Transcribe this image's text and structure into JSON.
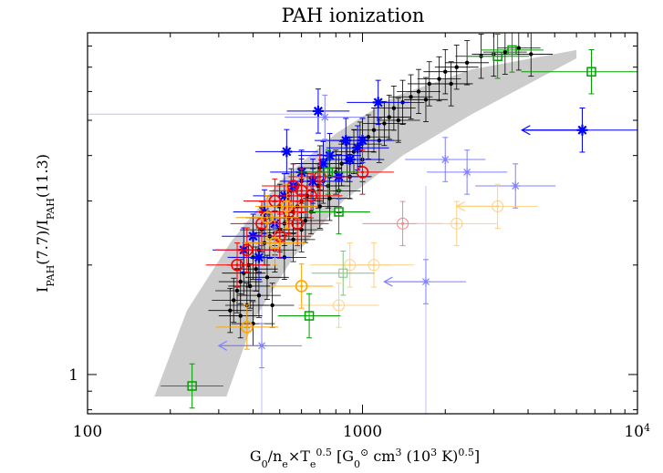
{
  "chart_data": {
    "type": "scatter",
    "title": "PAH ionization",
    "xlabel": "G0/ne×Te0.5 [G0⊙ cm3 (103 K)0.5]",
    "ylabel": "IPAH(7.7)/IPAH(11.3)",
    "x_scale": "log",
    "y_scale": "log",
    "xlim": [
      100,
      10000
    ],
    "ylim": [
      0.78,
      8.7
    ],
    "x_tick_labels": [
      {
        "value": 100,
        "label": "100"
      },
      {
        "value": 1000,
        "label": "1000"
      },
      {
        "value": 10000,
        "label": "10",
        "exponent": "4"
      }
    ],
    "y_tick_labels": [
      {
        "value": 1,
        "label": "1"
      }
    ],
    "grid": false,
    "band": {
      "color": "#cccccc",
      "upper": [
        [
          175,
          0.87
        ],
        [
          230,
          1.5
        ],
        [
          330,
          2.3
        ],
        [
          500,
          3.4
        ],
        [
          800,
          4.6
        ],
        [
          1300,
          5.8
        ],
        [
          2500,
          6.9
        ],
        [
          6000,
          7.8
        ]
      ],
      "lower": [
        [
          320,
          0.87
        ],
        [
          400,
          1.4
        ],
        [
          560,
          2.1
        ],
        [
          850,
          3.0
        ],
        [
          1400,
          4.0
        ],
        [
          2500,
          5.2
        ],
        [
          6000,
          7.4
        ]
      ]
    },
    "series": [
      {
        "marker": "dot",
        "color": "#000000",
        "points": [
          [
            2700,
            7.5,
            0.12,
            0.3
          ],
          [
            3000,
            7.6,
            0.1,
            0.3
          ],
          [
            3300,
            7.7,
            0.1,
            0.3
          ],
          [
            3700,
            7.9,
            0.1,
            0.3
          ],
          [
            4100,
            7.6,
            0.1,
            0.3
          ],
          [
            2400,
            7.2,
            0.1,
            0.3
          ],
          [
            2200,
            7.0,
            0.1,
            0.3
          ],
          [
            2000,
            6.8,
            0.1,
            0.3
          ],
          [
            1900,
            6.5,
            0.1,
            0.3
          ],
          [
            1750,
            6.3,
            0.1,
            0.3
          ],
          [
            1600,
            6.0,
            0.1,
            0.3
          ],
          [
            1500,
            5.8,
            0.1,
            0.3
          ],
          [
            1400,
            5.6,
            0.1,
            0.3
          ],
          [
            1300,
            5.4,
            0.1,
            0.3
          ],
          [
            1250,
            5.1,
            0.1,
            0.3
          ],
          [
            1200,
            4.9,
            0.1,
            0.3
          ],
          [
            1100,
            4.7,
            0.1,
            0.3
          ],
          [
            1050,
            4.5,
            0.1,
            0.3
          ],
          [
            980,
            4.3,
            0.1,
            0.3
          ],
          [
            930,
            4.1,
            0.1,
            0.3
          ],
          [
            880,
            3.9,
            0.1,
            0.3
          ],
          [
            840,
            3.8,
            0.1,
            0.3
          ],
          [
            800,
            3.6,
            0.1,
            0.3
          ],
          [
            760,
            3.5,
            0.1,
            0.3
          ],
          [
            720,
            3.4,
            0.1,
            0.3
          ],
          [
            690,
            3.3,
            0.1,
            0.3
          ],
          [
            660,
            3.2,
            0.1,
            0.3
          ],
          [
            630,
            3.1,
            0.1,
            0.3
          ],
          [
            600,
            3.0,
            0.1,
            0.3
          ],
          [
            580,
            2.9,
            0.1,
            0.3
          ],
          [
            560,
            2.8,
            0.1,
            0.3
          ],
          [
            540,
            2.7,
            0.1,
            0.3
          ],
          [
            520,
            2.6,
            0.1,
            0.3
          ],
          [
            500,
            2.5,
            0.1,
            0.3
          ],
          [
            480,
            2.45,
            0.1,
            0.3
          ],
          [
            460,
            2.4,
            0.1,
            0.3
          ],
          [
            440,
            2.3,
            0.1,
            0.3
          ],
          [
            420,
            2.2,
            0.1,
            0.3
          ],
          [
            400,
            2.1,
            0.1,
            0.3
          ],
          [
            385,
            2.0,
            0.1,
            0.3
          ],
          [
            370,
            1.9,
            0.1,
            0.3
          ],
          [
            360,
            1.8,
            0.1,
            0.3
          ],
          [
            350,
            1.7,
            0.1,
            0.3
          ],
          [
            340,
            1.6,
            0.1,
            0.3
          ],
          [
            330,
            1.5,
            0.1,
            0.3
          ],
          [
            700,
            3.7,
            0.1,
            0.3
          ],
          [
            750,
            3.3,
            0.1,
            0.3
          ],
          [
            820,
            3.2,
            0.1,
            0.3
          ],
          [
            600,
            3.4,
            0.1,
            0.3
          ],
          [
            550,
            3.2,
            0.1,
            0.3
          ],
          [
            650,
            2.8,
            0.1,
            0.3
          ],
          [
            500,
            2.9,
            0.1,
            0.3
          ],
          [
            450,
            2.7,
            0.1,
            0.3
          ],
          [
            430,
            2.5,
            0.1,
            0.3
          ],
          [
            480,
            2.2,
            0.1,
            0.3
          ],
          [
            520,
            2.1,
            0.1,
            0.3
          ],
          [
            410,
            1.95,
            0.1,
            0.3
          ],
          [
            390,
            1.75,
            0.1,
            0.3
          ],
          [
            450,
            1.85,
            0.1,
            0.3
          ],
          [
            600,
            2.5,
            0.1,
            0.3
          ],
          [
            700,
            2.9,
            0.1,
            0.3
          ],
          [
            900,
            3.5,
            0.1,
            0.3
          ],
          [
            1000,
            3.9,
            0.1,
            0.3
          ],
          [
            1150,
            4.4,
            0.1,
            0.3
          ],
          [
            1350,
            5.0,
            0.1,
            0.3
          ],
          [
            1700,
            5.7,
            0.1,
            0.3
          ],
          [
            2100,
            6.3,
            0.1,
            0.3
          ],
          [
            380,
            1.55,
            0.1,
            0.3
          ],
          [
            420,
            1.65,
            0.1,
            0.3
          ],
          [
            470,
            1.55,
            0.1,
            0.3
          ],
          [
            360,
            1.45,
            0.1,
            0.3
          ],
          [
            400,
            1.38,
            0.1,
            0.3
          ],
          [
            560,
            2.35,
            0.1,
            0.3
          ],
          [
            620,
            2.65,
            0.1,
            0.3
          ],
          [
            760,
            3.05,
            0.1,
            0.3
          ]
        ]
      },
      {
        "marker": "star",
        "color": "#0000ff",
        "points": [
          [
            690,
            5.3,
            0.15,
            0.3
          ],
          [
            1140,
            5.6,
            0.15,
            0.3
          ],
          [
            530,
            4.1,
            0.15,
            0.3
          ],
          [
            6300,
            4.7,
            0.3,
            0.3
          ],
          [
            870,
            4.4,
            0.15,
            0.3
          ],
          [
            960,
            4.2,
            0.15,
            0.3
          ],
          [
            1000,
            4.4,
            0.15,
            0.3
          ],
          [
            760,
            4.0,
            0.15,
            0.3
          ],
          [
            660,
            3.4,
            0.15,
            0.3
          ],
          [
            560,
            3.3,
            0.15,
            0.3
          ],
          [
            520,
            3.1,
            0.15,
            0.3
          ],
          [
            440,
            2.8,
            0.15,
            0.3
          ],
          [
            480,
            2.6,
            0.15,
            0.3
          ],
          [
            400,
            2.4,
            0.15,
            0.3
          ],
          [
            370,
            2.2,
            0.15,
            0.3
          ],
          [
            420,
            2.1,
            0.15,
            0.3
          ],
          [
            600,
            3.6,
            0.15,
            0.3
          ],
          [
            720,
            3.8,
            0.15,
            0.3
          ],
          [
            820,
            3.5,
            0.15,
            0.3
          ],
          [
            900,
            3.9,
            0.15,
            0.3
          ]
        ]
      },
      {
        "marker": "star-open",
        "color": "#8080ff",
        "points": [
          [
            730,
            5.1,
            0.2,
            0.3
          ],
          [
            2000,
            3.9,
            0.2,
            0.3
          ],
          [
            2400,
            3.6,
            0.2,
            0.3
          ],
          [
            3600,
            3.3,
            0.2,
            0.3
          ],
          [
            1700,
            1.8,
            0.2,
            0.3
          ],
          [
            430,
            1.2,
            0.2,
            0.3
          ]
        ]
      },
      {
        "marker": "circle",
        "color": "#ff0000",
        "points": [
          [
            480,
            3.0,
            0.15,
            0.3
          ],
          [
            540,
            2.8,
            0.15,
            0.3
          ],
          [
            600,
            3.2,
            0.15,
            0.3
          ],
          [
            650,
            3.1,
            0.15,
            0.3
          ],
          [
            430,
            2.6,
            0.15,
            0.3
          ],
          [
            380,
            2.2,
            0.15,
            0.3
          ],
          [
            350,
            2.0,
            0.15,
            0.3
          ],
          [
            1000,
            3.6,
            0.15,
            0.3
          ],
          [
            700,
            3.5,
            0.15,
            0.3
          ],
          [
            580,
            2.6,
            0.15,
            0.3
          ],
          [
            500,
            2.4,
            0.15,
            0.3
          ],
          [
            560,
            3.3,
            0.15,
            0.3
          ]
        ]
      },
      {
        "marker": "circle-open",
        "color": "#ff8080",
        "points": [
          [
            1400,
            2.6,
            0.2,
            0.3
          ]
        ]
      },
      {
        "marker": "circle",
        "color": "#ffa500",
        "points": [
          [
            530,
            2.9,
            0.15,
            0.3
          ],
          [
            450,
            2.7,
            0.15,
            0.3
          ],
          [
            600,
            1.75,
            0.15,
            0.3
          ],
          [
            380,
            1.35,
            0.15,
            0.3
          ],
          [
            480,
            2.3,
            0.15,
            0.3
          ]
        ]
      },
      {
        "marker": "circle-open",
        "color": "#ffd080",
        "points": [
          [
            3100,
            2.9,
            0.2,
            0.3
          ],
          [
            2200,
            2.6,
            0.2,
            0.3
          ],
          [
            900,
            2.0,
            0.2,
            0.3
          ],
          [
            820,
            1.55,
            0.2,
            0.3
          ],
          [
            1100,
            2.0,
            0.2,
            0.3
          ]
        ]
      },
      {
        "marker": "square",
        "color": "#00a000",
        "points": [
          [
            3500,
            7.8,
            0.15,
            0.3
          ],
          [
            3100,
            7.5,
            0.15,
            0.3
          ],
          [
            6800,
            6.8,
            0.4,
            0.3
          ],
          [
            640,
            1.45,
            0.15,
            0.3
          ],
          [
            240,
            0.93,
            0.15,
            0.3
          ],
          [
            820,
            2.8,
            0.15,
            0.3
          ],
          [
            750,
            3.6,
            0.15,
            0.3
          ]
        ]
      },
      {
        "marker": "square-open",
        "color": "#80c080",
        "points": [
          [
            850,
            1.9,
            0.15,
            0.3
          ]
        ]
      }
    ],
    "arrows": [
      {
        "color": "#0000ff",
        "from": [
          6300,
          4.7
        ],
        "to": [
          3800,
          4.7
        ]
      },
      {
        "color": "#8080ff",
        "from": [
          430,
          1.2
        ],
        "to": [
          300,
          1.2
        ]
      },
      {
        "color": "#8080ff",
        "from": [
          1700,
          1.8
        ],
        "to": [
          1200,
          1.8
        ]
      },
      {
        "color": "#ffd080",
        "from": [
          3100,
          2.9
        ],
        "to": [
          2200,
          2.9
        ]
      }
    ],
    "reference_lines": [
      {
        "color": "#c0c0ff",
        "from": [
          100,
          5.2
        ],
        "to": [
          730,
          5.2
        ]
      },
      {
        "color": "#c0c0ff",
        "from": [
          1700,
          0.78
        ],
        "to": [
          1700,
          3.3
        ]
      },
      {
        "color": "#c0c0ff",
        "from": [
          430,
          0.78
        ],
        "to": [
          430,
          2.0
        ]
      }
    ]
  }
}
